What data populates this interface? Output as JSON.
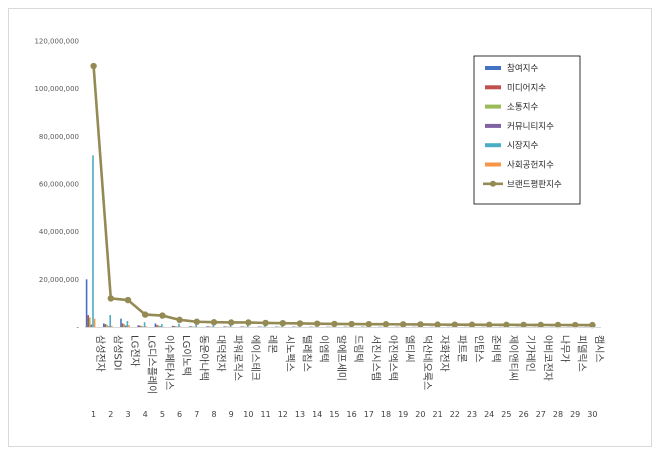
{
  "chart_data": {
    "type": "bar",
    "title": "",
    "xlabel": "",
    "ylabel": "",
    "ylim": [
      0,
      120000000
    ],
    "yticks": [
      0,
      20000000,
      40000000,
      60000000,
      80000000,
      100000000,
      120000000
    ],
    "ytick_labels": [
      "-",
      "20,000,000",
      "40,000,000",
      "60,000,000",
      "80,000,000",
      "100,000,000",
      "120,000,000"
    ],
    "grid": false,
    "legend_position": "top-right",
    "categories": [
      "삼성전자",
      "삼성SDI",
      "LG전자",
      "LG디스플레이",
      "이수페타시스",
      "LG이노텍",
      "동운아나텍",
      "대덕전자",
      "파워로직스",
      "에이스테크",
      "레몬",
      "시노펙스",
      "텔레칩스",
      "이엠텍",
      "알에프세미",
      "드림텍",
      "서진시스템",
      "아진엑스텍",
      "엘티씨",
      "덕산네오룩스",
      "자화전자",
      "파트론",
      "인탑스",
      "준비텍",
      "제이앤티씨",
      "기가레인",
      "아비코전자",
      "나무가",
      "피델릭스",
      "캠시스"
    ],
    "category_numbers": [
      "1",
      "2",
      "3",
      "4",
      "5",
      "6",
      "7",
      "8",
      "9",
      "10",
      "11",
      "12",
      "13",
      "14",
      "15",
      "16",
      "17",
      "18",
      "19",
      "20",
      "21",
      "22",
      "23",
      "24",
      "25",
      "26",
      "27",
      "28",
      "29",
      "30"
    ],
    "series": [
      {
        "name": "참여지수",
        "color": "#4472c4",
        "values": [
          20000000,
          1500000,
          3500000,
          700000,
          1500000,
          500000,
          300000,
          300000,
          250000,
          250000,
          200000,
          200000,
          200000,
          150000,
          150000,
          150000,
          150000,
          120000,
          120000,
          120000,
          100000,
          100000,
          100000,
          100000,
          90000,
          90000,
          80000,
          80000,
          70000,
          70000
        ]
      },
      {
        "name": "미디어지수",
        "color": "#c0504d",
        "values": [
          5000000,
          1200000,
          1500000,
          600000,
          900000,
          400000,
          250000,
          250000,
          200000,
          200000,
          180000,
          160000,
          160000,
          130000,
          130000,
          120000,
          120000,
          100000,
          100000,
          100000,
          90000,
          90000,
          80000,
          80000,
          80000,
          70000,
          70000,
          60000,
          60000,
          60000
        ]
      },
      {
        "name": "소통지수",
        "color": "#9bbb59",
        "values": [
          4000000,
          1000000,
          1200000,
          500000,
          700000,
          350000,
          220000,
          200000,
          180000,
          180000,
          160000,
          140000,
          140000,
          120000,
          110000,
          100000,
          100000,
          90000,
          90000,
          90000,
          80000,
          80000,
          70000,
          70000,
          70000,
          60000,
          60000,
          50000,
          50000,
          50000
        ]
      },
      {
        "name": "커뮤니티지수",
        "color": "#8064a2",
        "values": [
          1000000,
          300000,
          600000,
          200000,
          300000,
          150000,
          100000,
          90000,
          80000,
          80000,
          70000,
          60000,
          60000,
          50000,
          50000,
          50000,
          40000,
          40000,
          40000,
          40000,
          30000,
          30000,
          30000,
          30000,
          30000,
          20000,
          20000,
          20000,
          20000,
          20000
        ]
      },
      {
        "name": "시장지수",
        "color": "#4bacc6",
        "values": [
          72000000,
          5000000,
          2500000,
          2000000,
          1200000,
          1400000,
          1000000,
          900000,
          800000,
          850000,
          700000,
          650000,
          600000,
          550000,
          500000,
          480000,
          450000,
          420000,
          400000,
          380000,
          350000,
          330000,
          300000,
          280000,
          260000,
          240000,
          220000,
          200000,
          180000,
          160000
        ]
      },
      {
        "name": "사회공헌지수",
        "color": "#f79646",
        "values": [
          3500000,
          500000,
          800000,
          300000,
          100000,
          200000,
          50000,
          50000,
          40000,
          40000,
          30000,
          30000,
          30000,
          20000,
          20000,
          20000,
          20000,
          20000,
          20000,
          20000,
          10000,
          10000,
          10000,
          10000,
          10000,
          10000,
          10000,
          10000,
          10000,
          10000
        ]
      },
      {
        "name": "브랜드평판지수",
        "color": "#948a54",
        "type": "line",
        "values": [
          109500000,
          12000000,
          11300000,
          5200000,
          4800000,
          3000000,
          2200000,
          2000000,
          1900000,
          1900000,
          1700000,
          1600000,
          1500000,
          1400000,
          1300000,
          1250000,
          1200000,
          1150000,
          1100000,
          1080000,
          1000000,
          980000,
          950000,
          920000,
          900000,
          880000,
          860000,
          840000,
          820000,
          800000
        ]
      }
    ]
  }
}
